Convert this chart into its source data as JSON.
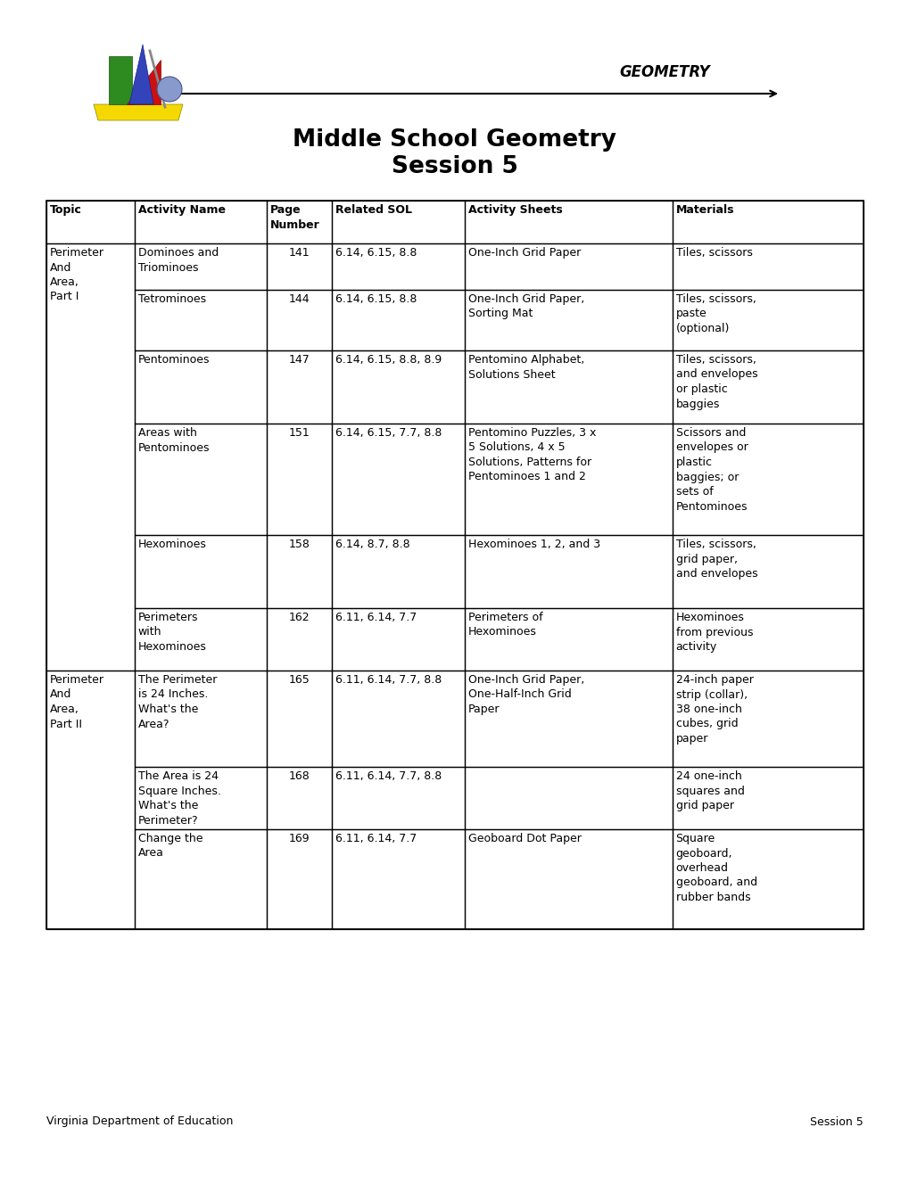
{
  "title_line1": "Middle School Geometry",
  "title_line2": "Session 5",
  "geometry_label": "GEOMETRY",
  "footer_left": "Virginia Department of Education",
  "footer_right": "Session 5",
  "table": {
    "headers": [
      "Topic",
      "Activity Name",
      "Page\nNumber",
      "Related SOL",
      "Activity Sheets",
      "Materials"
    ],
    "rows": [
      {
        "activity": "Dominoes and\nTriominoes",
        "page": "141",
        "sol": "6.14, 6.15, 8.8",
        "sheets": "One-Inch Grid Paper",
        "materials": "Tiles, scissors"
      },
      {
        "activity": "Tetrominoes",
        "page": "144",
        "sol": "6.14, 6.15, 8.8",
        "sheets": "One-Inch Grid Paper,\nSorting Mat",
        "materials": "Tiles, scissors,\npaste\n(optional)"
      },
      {
        "activity": "Pentominoes",
        "page": "147",
        "sol": "6.14, 6.15, 8.8, 8.9",
        "sheets": "Pentomino Alphabet,\nSolutions Sheet",
        "materials": "Tiles, scissors,\nand envelopes\nor plastic\nbaggies"
      },
      {
        "activity": "Areas with\nPentominoes",
        "page": "151",
        "sol": "6.14, 6.15, 7.7, 8.8",
        "sheets": "Pentomino Puzzles, 3 x\n5 Solutions, 4 x 5\nSolutions, Patterns for\nPentominoes 1 and 2",
        "materials": "Scissors and\nenvelopes or\nplastic\nbaggies; or\nsets of\nPentominoes"
      },
      {
        "activity": "Hexominoes",
        "page": "158",
        "sol": "6.14, 8.7, 8.8",
        "sheets": "Hexominoes 1, 2, and 3",
        "materials": "Tiles, scissors,\ngrid paper,\nand envelopes"
      },
      {
        "activity": "Perimeters\nwith\nHexominoes",
        "page": "162",
        "sol": "6.11, 6.14, 7.7",
        "sheets": "Perimeters of\nHexominoes",
        "materials": "Hexominoes\nfrom previous\nactivity"
      },
      {
        "activity": "The Perimeter\nis 24 Inches.\nWhat's the\nArea?",
        "page": "165",
        "sol": "6.11, 6.14, 7.7, 8.8",
        "sheets": "One-Inch Grid Paper,\nOne-Half-Inch Grid\nPaper",
        "materials": "24-inch paper\nstrip (collar),\n38 one-inch\ncubes, grid\npaper"
      },
      {
        "activity": "The Area is 24\nSquare Inches.\nWhat's the\nPerimeter?",
        "page": "168",
        "sol": "6.11, 6.14, 7.7, 8.8",
        "sheets": "",
        "materials": "24 one-inch\nsquares and\ngrid paper"
      },
      {
        "activity": "Change the\nArea",
        "page": "169",
        "sol": "6.11, 6.14, 7.7",
        "sheets": "Geoboard Dot Paper",
        "materials": "Square\ngeoboard,\noverhead\ngeoboard, and\nrubber bands"
      }
    ]
  },
  "topic_groups": [
    {
      "label": "Perimeter\nAnd\nArea,\nPart I",
      "start": 0,
      "end": 5
    },
    {
      "label": "Perimeter\nAnd\nArea,\nPart II",
      "start": 6,
      "end": 8
    }
  ],
  "bg_color": "#ffffff",
  "text_color": "#000000"
}
